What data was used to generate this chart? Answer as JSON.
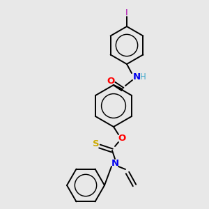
{
  "background_color": "#e8e8e8",
  "bond_color": "#000000",
  "atom_colors": {
    "O": "#ff0000",
    "N": "#0000ee",
    "S": "#ccaa00",
    "I": "#aa00aa",
    "H": "#44aacc"
  },
  "figsize": [
    3.0,
    3.0
  ],
  "dpi": 100
}
